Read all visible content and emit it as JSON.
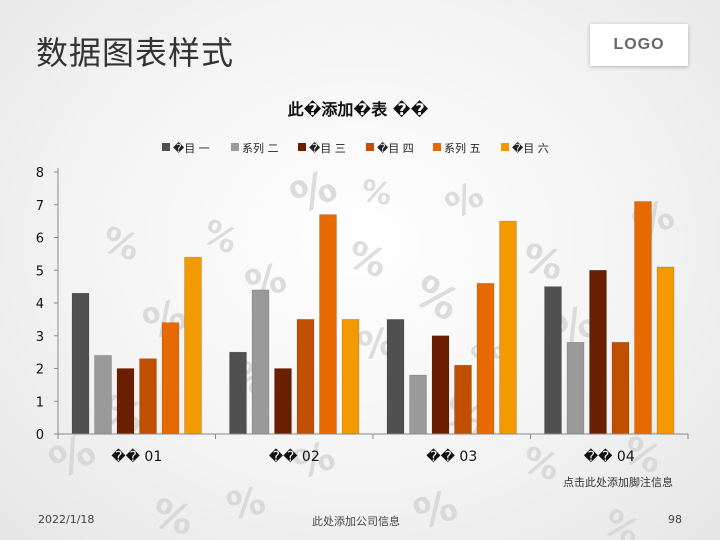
{
  "slide": {
    "title": "数据图表样式",
    "logo": "LOGO",
    "note": "点击此处添加脚注信息",
    "date": "2022/1/18",
    "company": "此处添加公司信息",
    "page_number": "98"
  },
  "chart_data": {
    "type": "bar",
    "title": "此�添加�表 ��",
    "categories": [
      "�� 01",
      "�� 02",
      "�� 03",
      "�� 04"
    ],
    "series": [
      {
        "name": "�目 一",
        "color": "#505050",
        "values": [
          4.3,
          2.5,
          3.5,
          4.5
        ]
      },
      {
        "name": "系列 二",
        "color": "#9a9a9a",
        "values": [
          2.4,
          4.4,
          1.8,
          2.8
        ]
      },
      {
        "name": "�目 三",
        "color": "#6b1e00",
        "values": [
          2.0,
          2.0,
          3.0,
          5.0
        ]
      },
      {
        "name": "�目 四",
        "color": "#c14f00",
        "values": [
          2.3,
          3.5,
          2.1,
          2.8
        ]
      },
      {
        "name": "系列 五",
        "color": "#e66a00",
        "values": [
          3.4,
          6.7,
          4.6,
          7.1
        ]
      },
      {
        "name": "�目 六",
        "color": "#f29a00",
        "values": [
          5.4,
          3.5,
          6.5,
          5.1
        ]
      }
    ],
    "yticks": [
      0,
      1,
      2,
      3,
      4,
      5,
      6,
      7,
      8
    ],
    "ylim": [
      0,
      8
    ],
    "grid": false,
    "legend_position": "top"
  }
}
